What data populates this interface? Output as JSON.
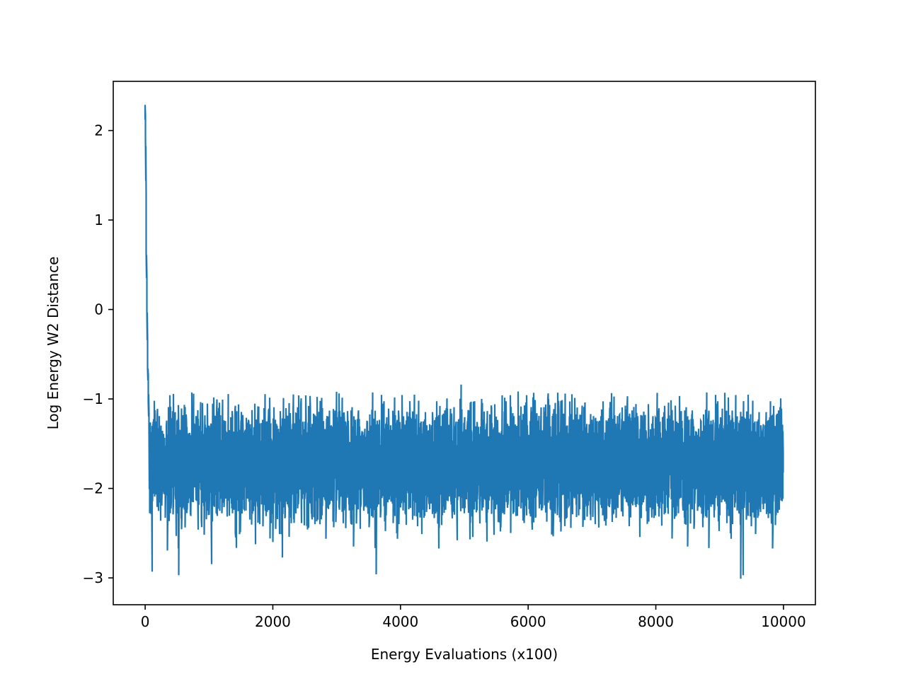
{
  "chart_data": {
    "type": "line",
    "title": "",
    "xlabel": "Energy Evaluations (x100)",
    "ylabel": "Log Energy W2 Distance",
    "xlim": [
      -500,
      10500
    ],
    "ylim": [
      -3.3,
      2.55
    ],
    "xticks": [
      0,
      2000,
      4000,
      6000,
      8000,
      10000
    ],
    "xtick_labels": [
      "0",
      "2000",
      "4000",
      "6000",
      "8000",
      "10000"
    ],
    "yticks": [
      -3,
      -2,
      -1,
      0,
      1,
      2
    ],
    "ytick_labels": [
      "−3",
      "−2",
      "−1",
      "0",
      "1",
      "2"
    ],
    "grid": false,
    "legend": "none",
    "series": [
      {
        "color": "#1f77b4",
        "n_points": 10000,
        "x_start": 0,
        "x_end": 10000,
        "initial_decay": [
          {
            "x": 0,
            "y": 2.28
          },
          {
            "x": 10,
            "y": 2.0
          },
          {
            "x": 15,
            "y": 1.4
          },
          {
            "x": 20,
            "y": 0.7
          },
          {
            "x": 30,
            "y": 0.2
          },
          {
            "x": 40,
            "y": -0.5
          },
          {
            "x": 55,
            "y": -1.0
          },
          {
            "x": 70,
            "y": -1.5
          }
        ],
        "steady_state": {
          "mean": -1.72,
          "std": 0.28,
          "min": -3.0,
          "max": -0.83
        },
        "notable_points": [
          {
            "x": 110,
            "y": -2.93
          },
          {
            "x": 530,
            "y": -2.97
          },
          {
            "x": 3620,
            "y": -2.96
          },
          {
            "x": 4950,
            "y": -0.84
          },
          {
            "x": 9080,
            "y": -0.93
          },
          {
            "x": 9330,
            "y": -3.01
          },
          {
            "x": 9370,
            "y": -2.97
          }
        ]
      }
    ]
  }
}
